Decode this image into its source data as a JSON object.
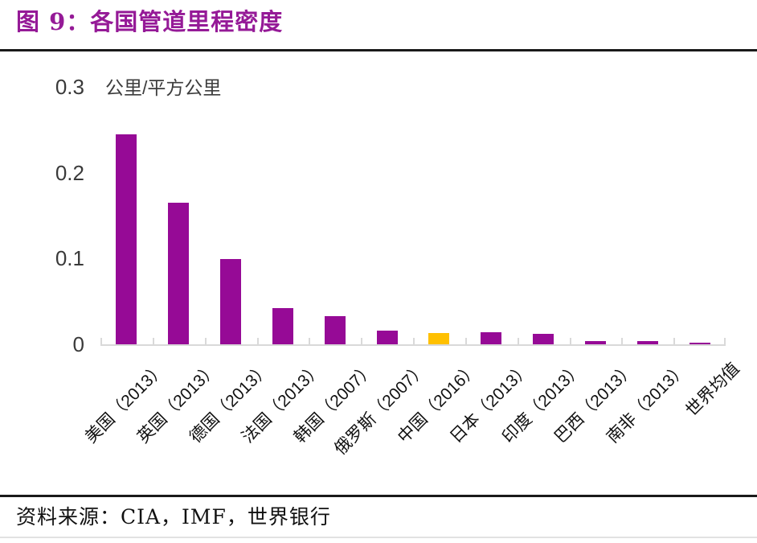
{
  "figure": {
    "title": "图 9：各国管道里程密度",
    "source": "资料来源：CIA，IMF，世界银行"
  },
  "chart_data": {
    "type": "bar",
    "title": "各国管道里程密度",
    "unit_label": "公里/平方公里",
    "categories": [
      "美国（2013）",
      "英国（2013）",
      "德国（2013）",
      "法国（2013）",
      "韩国（2007）",
      "俄罗斯（2007）",
      "中国（2016）",
      "日本（2013）",
      "印度（2013）",
      "巴西（2013）",
      "南非（2013）",
      "世界均值"
    ],
    "values": [
      0.245,
      0.165,
      0.099,
      0.042,
      0.033,
      0.016,
      0.013,
      0.014,
      0.012,
      0.004,
      0.004,
      0.001
    ],
    "highlight_index": 6,
    "yticks": [
      0,
      0.1,
      0.2,
      0.3
    ],
    "ylim": [
      0,
      0.3
    ],
    "xlabel": "",
    "ylabel": "公里/平方公里",
    "grid": false,
    "legend": "none",
    "bar_color": "#960A96",
    "highlight_color": "#FFC000",
    "axis_color": "#D9D9D9",
    "title_color": "#951A97"
  }
}
